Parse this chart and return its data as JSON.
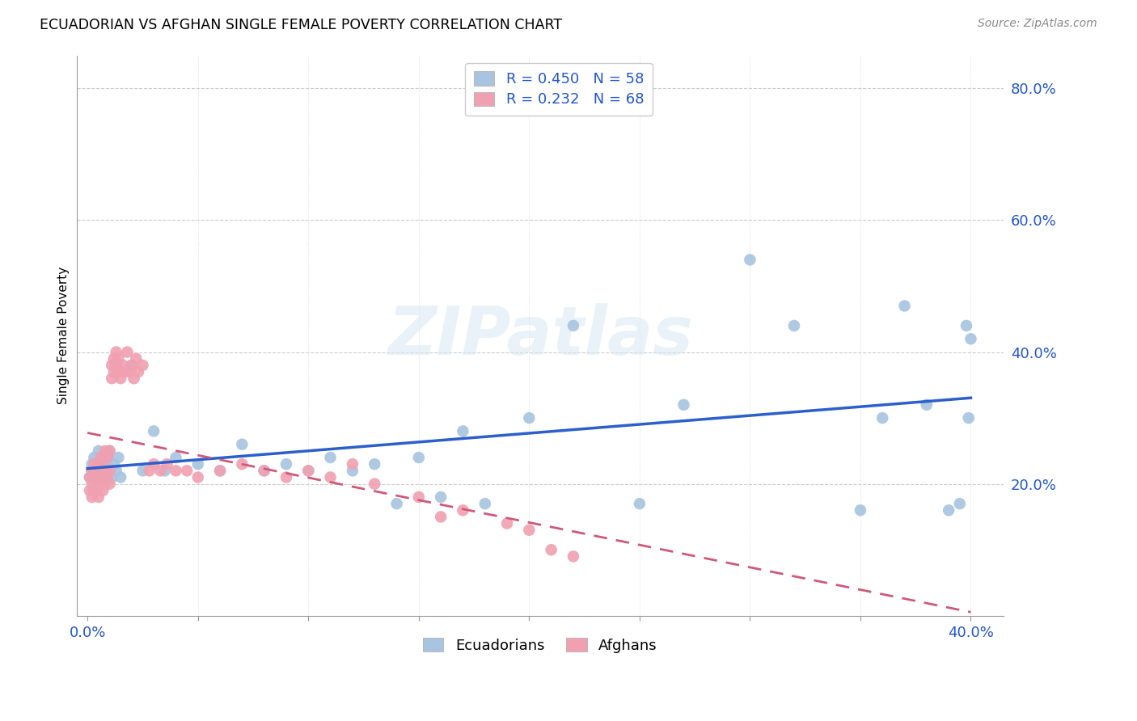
{
  "title": "ECUADORIAN VS AFGHAN SINGLE FEMALE POVERTY CORRELATION CHART",
  "source": "Source: ZipAtlas.com",
  "ylabel": "Single Female Poverty",
  "ecuadorian_R": 0.45,
  "ecuadorian_N": 58,
  "afghan_R": 0.232,
  "afghan_N": 68,
  "ecuadorian_color": "#a8c4e0",
  "afghan_color": "#f0a0b0",
  "ecuadorian_line_color": "#2b5fcc",
  "afghan_line_color": "#d05878",
  "legend_color": "#2255cc",
  "xlim": [
    0.0,
    0.4
  ],
  "ylim": [
    0.0,
    0.85
  ],
  "yticks": [
    0.2,
    0.4,
    0.6,
    0.8
  ],
  "ytick_labels": [
    "20.0%",
    "40.0%",
    "60.0%",
    "80.0%"
  ],
  "ec_x": [
    0.001,
    0.002,
    0.002,
    0.003,
    0.003,
    0.004,
    0.004,
    0.005,
    0.005,
    0.006,
    0.006,
    0.007,
    0.007,
    0.008,
    0.008,
    0.009,
    0.009,
    0.01,
    0.01,
    0.011,
    0.012,
    0.013,
    0.014,
    0.015,
    0.02,
    0.025,
    0.03,
    0.035,
    0.04,
    0.05,
    0.06,
    0.07,
    0.08,
    0.09,
    0.1,
    0.11,
    0.12,
    0.13,
    0.14,
    0.15,
    0.16,
    0.17,
    0.18,
    0.2,
    0.22,
    0.25,
    0.27,
    0.3,
    0.32,
    0.35,
    0.36,
    0.37,
    0.38,
    0.39,
    0.395,
    0.398,
    0.399,
    0.4
  ],
  "ec_y": [
    0.21,
    0.23,
    0.22,
    0.22,
    0.24,
    0.21,
    0.23,
    0.22,
    0.25,
    0.21,
    0.24,
    0.22,
    0.23,
    0.21,
    0.22,
    0.23,
    0.24,
    0.22,
    0.25,
    0.21,
    0.23,
    0.22,
    0.24,
    0.21,
    0.38,
    0.22,
    0.28,
    0.22,
    0.24,
    0.23,
    0.22,
    0.26,
    0.22,
    0.23,
    0.22,
    0.24,
    0.22,
    0.23,
    0.17,
    0.24,
    0.18,
    0.28,
    0.17,
    0.3,
    0.44,
    0.17,
    0.32,
    0.54,
    0.44,
    0.16,
    0.3,
    0.47,
    0.32,
    0.16,
    0.17,
    0.44,
    0.3,
    0.42
  ],
  "af_x": [
    0.001,
    0.001,
    0.002,
    0.002,
    0.002,
    0.003,
    0.003,
    0.003,
    0.004,
    0.004,
    0.004,
    0.005,
    0.005,
    0.005,
    0.006,
    0.006,
    0.006,
    0.007,
    0.007,
    0.007,
    0.008,
    0.008,
    0.008,
    0.009,
    0.009,
    0.01,
    0.01,
    0.01,
    0.011,
    0.011,
    0.012,
    0.012,
    0.013,
    0.013,
    0.014,
    0.014,
    0.015,
    0.016,
    0.017,
    0.018,
    0.019,
    0.02,
    0.021,
    0.022,
    0.023,
    0.025,
    0.028,
    0.03,
    0.033,
    0.036,
    0.04,
    0.045,
    0.05,
    0.06,
    0.07,
    0.08,
    0.09,
    0.1,
    0.11,
    0.12,
    0.13,
    0.15,
    0.16,
    0.17,
    0.19,
    0.2,
    0.21,
    0.22
  ],
  "af_y": [
    0.21,
    0.19,
    0.22,
    0.2,
    0.18,
    0.23,
    0.21,
    0.19,
    0.22,
    0.2,
    0.19,
    0.23,
    0.21,
    0.18,
    0.24,
    0.22,
    0.2,
    0.23,
    0.21,
    0.19,
    0.25,
    0.22,
    0.2,
    0.24,
    0.21,
    0.25,
    0.22,
    0.2,
    0.36,
    0.38,
    0.39,
    0.37,
    0.4,
    0.38,
    0.37,
    0.39,
    0.36,
    0.38,
    0.37,
    0.4,
    0.37,
    0.38,
    0.36,
    0.39,
    0.37,
    0.38,
    0.22,
    0.23,
    0.22,
    0.23,
    0.22,
    0.22,
    0.21,
    0.22,
    0.23,
    0.22,
    0.21,
    0.22,
    0.21,
    0.23,
    0.2,
    0.18,
    0.15,
    0.16,
    0.14,
    0.13,
    0.1,
    0.09
  ]
}
